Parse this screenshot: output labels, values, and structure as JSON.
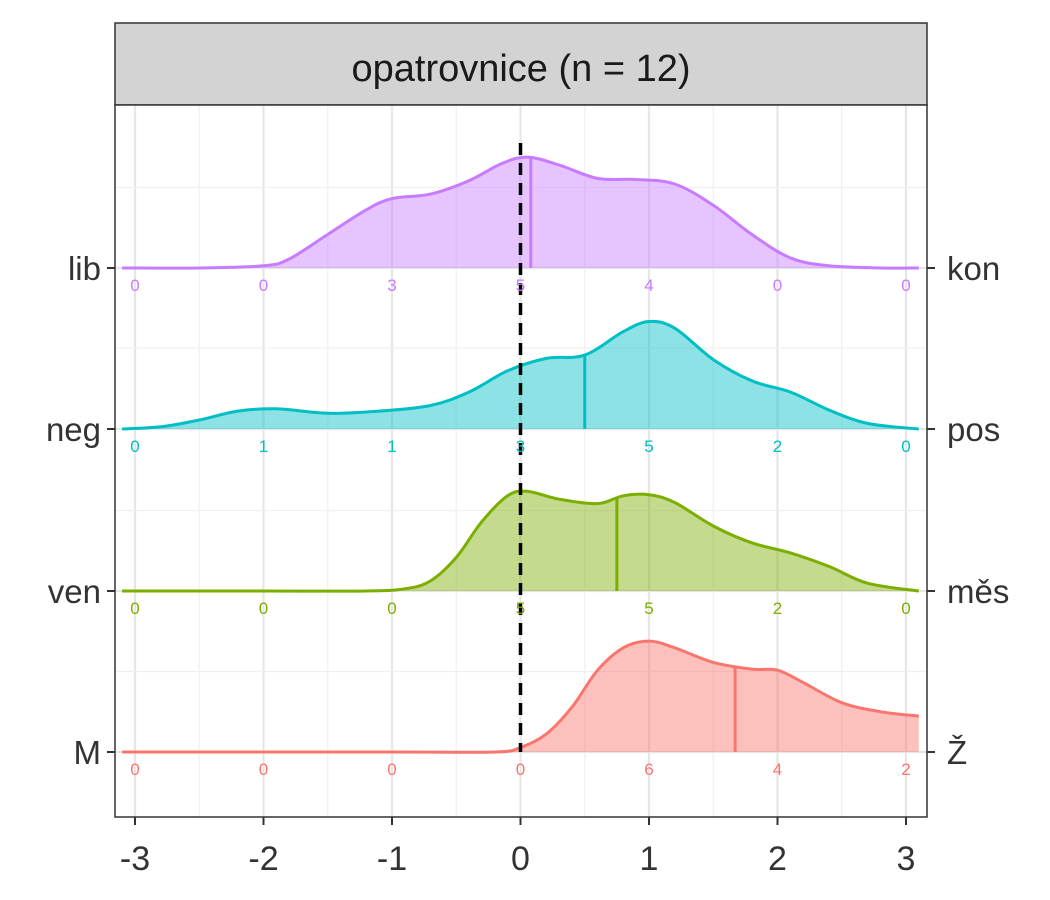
{
  "chart_data": {
    "type": "ridgeline",
    "title": "opatrovnice (n = 12)",
    "xlim": [
      -3,
      3
    ],
    "x_ticks": [
      -3,
      -2,
      -1,
      0,
      1,
      2,
      3
    ],
    "x_tick_labels": [
      "-3",
      "-2",
      "-1",
      "0",
      "1",
      "2",
      "3"
    ],
    "reference_line_x": 0,
    "grid": true,
    "count_positions": [
      -3,
      -2,
      -1,
      0,
      1,
      2,
      3
    ],
    "rows": [
      {
        "left_label": "lib",
        "right_label": "kon",
        "color": "#C77CFF",
        "counts": [
          0,
          0,
          3,
          5,
          4,
          0,
          0
        ],
        "mean": 0.08,
        "density": [
          [
            -3.1,
            0
          ],
          [
            -2.5,
            0.0
          ],
          [
            -2,
            0.02
          ],
          [
            -1.8,
            0.08
          ],
          [
            -1.5,
            0.3
          ],
          [
            -1.2,
            0.52
          ],
          [
            -1.0,
            0.62
          ],
          [
            -0.7,
            0.66
          ],
          [
            -0.4,
            0.78
          ],
          [
            -0.15,
            0.93
          ],
          [
            0.05,
            0.99
          ],
          [
            0.3,
            0.92
          ],
          [
            0.6,
            0.8
          ],
          [
            0.9,
            0.79
          ],
          [
            1.2,
            0.75
          ],
          [
            1.5,
            0.56
          ],
          [
            1.8,
            0.3
          ],
          [
            2.1,
            0.09
          ],
          [
            2.4,
            0.02
          ],
          [
            2.8,
            0
          ],
          [
            3.1,
            0
          ]
        ]
      },
      {
        "left_label": "neg",
        "right_label": "pos",
        "color": "#00BFC4",
        "counts": [
          0,
          1,
          1,
          3,
          5,
          2,
          0
        ],
        "mean": 0.5,
        "density": [
          [
            -3.1,
            0
          ],
          [
            -2.8,
            0.02
          ],
          [
            -2.5,
            0.08
          ],
          [
            -2.2,
            0.16
          ],
          [
            -1.9,
            0.18
          ],
          [
            -1.5,
            0.14
          ],
          [
            -1.1,
            0.16
          ],
          [
            -0.7,
            0.21
          ],
          [
            -0.4,
            0.33
          ],
          [
            -0.1,
            0.52
          ],
          [
            0.2,
            0.63
          ],
          [
            0.5,
            0.66
          ],
          [
            0.8,
            0.87
          ],
          [
            1.0,
            0.96
          ],
          [
            1.2,
            0.9
          ],
          [
            1.5,
            0.62
          ],
          [
            1.8,
            0.43
          ],
          [
            2.1,
            0.33
          ],
          [
            2.4,
            0.17
          ],
          [
            2.7,
            0.05
          ],
          [
            3.1,
            0
          ]
        ]
      },
      {
        "left_label": "ven",
        "right_label": "měs",
        "color": "#7CAE00",
        "counts": [
          0,
          0,
          0,
          5,
          5,
          2,
          0
        ],
        "mean": 0.75,
        "density": [
          [
            -3.1,
            0
          ],
          [
            -2.0,
            0.0
          ],
          [
            -1.2,
            0.0
          ],
          [
            -0.9,
            0.02
          ],
          [
            -0.7,
            0.09
          ],
          [
            -0.5,
            0.3
          ],
          [
            -0.3,
            0.62
          ],
          [
            -0.1,
            0.85
          ],
          [
            0.05,
            0.89
          ],
          [
            0.3,
            0.82
          ],
          [
            0.6,
            0.78
          ],
          [
            0.8,
            0.85
          ],
          [
            1.0,
            0.86
          ],
          [
            1.2,
            0.79
          ],
          [
            1.5,
            0.58
          ],
          [
            1.8,
            0.43
          ],
          [
            2.1,
            0.34
          ],
          [
            2.4,
            0.22
          ],
          [
            2.7,
            0.07
          ],
          [
            3.1,
            0
          ]
        ]
      },
      {
        "left_label": "M",
        "right_label": "Ž",
        "color": "#F8766D",
        "counts": [
          0,
          0,
          0,
          0,
          6,
          4,
          2
        ],
        "mean": 1.67,
        "density": [
          [
            -3.1,
            0
          ],
          [
            -1.0,
            0.0
          ],
          [
            -0.2,
            0.0
          ],
          [
            0.0,
            0.04
          ],
          [
            0.2,
            0.16
          ],
          [
            0.4,
            0.4
          ],
          [
            0.6,
            0.73
          ],
          [
            0.8,
            0.93
          ],
          [
            1.0,
            0.99
          ],
          [
            1.2,
            0.93
          ],
          [
            1.5,
            0.8
          ],
          [
            1.8,
            0.74
          ],
          [
            2.0,
            0.73
          ],
          [
            2.2,
            0.62
          ],
          [
            2.5,
            0.44
          ],
          [
            2.8,
            0.36
          ],
          [
            3.1,
            0.32
          ]
        ]
      }
    ]
  }
}
